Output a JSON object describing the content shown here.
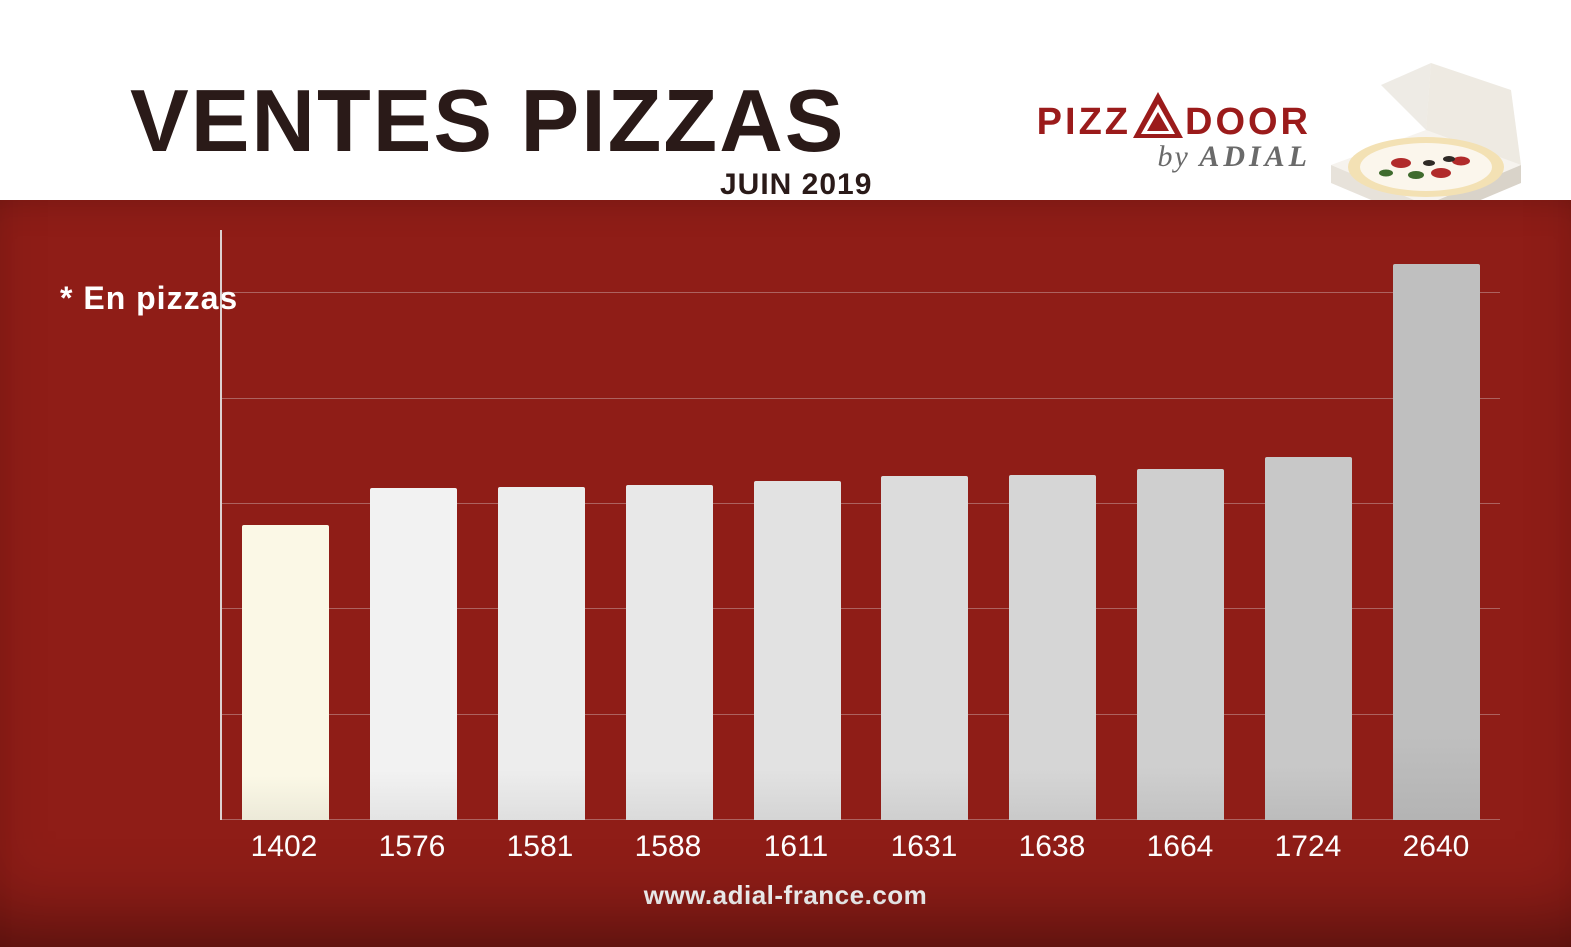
{
  "header": {
    "title": "VENTES PIZZAS",
    "subtitle": "JUIN 2019",
    "title_color": "#2a1a18",
    "title_fontsize": 88,
    "subtitle_fontsize": 30
  },
  "logo": {
    "line1_pizz": "PIZZ",
    "line1_door": "DOOR",
    "line2_by": "by ",
    "line2_brand": "ADIAL",
    "brand_color": "#9b1b1b",
    "by_color": "#6a6a6a"
  },
  "chart": {
    "type": "bar",
    "note": "* En pizzas",
    "note_color": "#ffffff",
    "background_color": "#8f1d17",
    "axis_color": "rgba(230,230,230,0.9)",
    "grid_color": "rgba(230,230,230,0.35)",
    "ylim": [
      0,
      2800
    ],
    "grid_lines": [
      0,
      500,
      1000,
      1500,
      2000,
      2500
    ],
    "bar_width": 0.68,
    "values": [
      1402,
      1576,
      1581,
      1588,
      1611,
      1631,
      1638,
      1664,
      1724,
      2640
    ],
    "labels": [
      "1402",
      "1576",
      "1581",
      "1588",
      "1611",
      "1631",
      "1638",
      "1664",
      "1724",
      "2640"
    ],
    "bar_colors": [
      "#fbf8e6",
      "#f2f2f2",
      "#ededed",
      "#e8e8e8",
      "#e2e2e2",
      "#dcdcdc",
      "#d6d6d6",
      "#cfcfcf",
      "#c8c8c8",
      "#bfbfbf"
    ],
    "label_color": "#ffffff",
    "label_fontsize": 30
  },
  "footer": {
    "url": "www.adial-france.com",
    "url_color": "#ffffff"
  }
}
